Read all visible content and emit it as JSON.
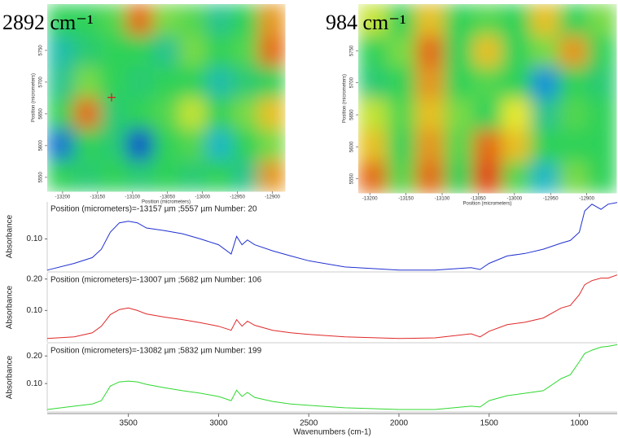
{
  "chart_data": [
    {
      "type": "heatmap",
      "title": "2892 cm⁻¹",
      "xlabel": "Position (micrometers)",
      "ylabel": "Position (micrometers)",
      "xlim": [
        -13222,
        -12882
      ],
      "ylim": [
        5528,
        5823
      ],
      "xticks": [
        -13200,
        -13150,
        -13100,
        -13050,
        -13000,
        -12950,
        -12900
      ],
      "yticks": [
        5550,
        5600,
        5650,
        5700,
        5750
      ],
      "zlim": [
        0,
        1
      ],
      "colors": [
        "#0a1fb4",
        "#1ab0e0",
        "#2ed158",
        "#e8e82a",
        "#e21a0c"
      ],
      "marker": {
        "x": -13130,
        "y": 5676,
        "color": "#d42020"
      },
      "z": [
        [
          0.5,
          0.5,
          0.55,
          0.9,
          0.6,
          0.55,
          0.4,
          0.5,
          0.85
        ],
        [
          0.35,
          0.45,
          0.5,
          0.5,
          0.4,
          0.6,
          0.5,
          0.55,
          0.9
        ],
        [
          0.4,
          0.6,
          0.5,
          0.45,
          0.5,
          0.5,
          0.35,
          0.45,
          0.5
        ],
        [
          0.5,
          0.9,
          0.45,
          0.5,
          0.55,
          0.7,
          0.5,
          0.6,
          0.8
        ],
        [
          0.15,
          0.5,
          0.45,
          0.1,
          0.5,
          0.55,
          0.3,
          0.5,
          0.6
        ],
        [
          0.5,
          0.45,
          0.5,
          0.45,
          0.5,
          0.45,
          0.5,
          0.4,
          0.85
        ]
      ]
    },
    {
      "type": "heatmap",
      "title": "984 cm⁻¹",
      "xlabel": "Position (micrometers)",
      "ylabel": "Position (micrometers)",
      "xlim": [
        -13216,
        -12859
      ],
      "ylim": [
        5528,
        5823
      ],
      "xticks": [
        -13200,
        -13150,
        -13100,
        -13050,
        -13000,
        -12950,
        -12900
      ],
      "yticks": [
        5550,
        5600,
        5650,
        5700,
        5750
      ],
      "zlim": [
        0,
        1
      ],
      "colors": [
        "#0a1fb4",
        "#1ab0e0",
        "#2ed158",
        "#e8e82a",
        "#e21a0c"
      ],
      "z": [
        [
          0.7,
          0.5,
          0.8,
          0.5,
          0.55,
          0.5,
          0.8,
          0.5,
          0.6
        ],
        [
          0.5,
          0.6,
          0.9,
          0.5,
          0.8,
          0.5,
          0.6,
          0.85,
          0.5
        ],
        [
          0.45,
          0.5,
          0.85,
          0.5,
          0.55,
          0.5,
          0.2,
          0.5,
          0.45
        ],
        [
          0.7,
          0.55,
          0.8,
          0.6,
          0.5,
          0.75,
          0.4,
          0.55,
          0.5
        ],
        [
          0.8,
          0.5,
          0.85,
          0.55,
          0.9,
          0.8,
          0.5,
          0.5,
          0.5
        ],
        [
          0.9,
          0.55,
          0.9,
          0.5,
          0.95,
          0.55,
          0.3,
          0.6,
          0.5
        ]
      ]
    },
    {
      "type": "line",
      "subtitle": "Position (micrometers)=-13157 µm ;5557 µm  Number: 20",
      "ylabel": "Absorbance",
      "xlim": [
        3950,
        790
      ],
      "ylim": [
        0,
        0.215
      ],
      "yticks": [
        {
          "value": 0.1,
          "label": "0.10"
        }
      ],
      "x": [
        3950,
        3800,
        3700,
        3650,
        3600,
        3550,
        3500,
        3450,
        3400,
        3300,
        3200,
        3100,
        3000,
        2930,
        2900,
        2870,
        2840,
        2800,
        2700,
        2600,
        2500,
        2300,
        2000,
        1800,
        1600,
        1550,
        1500,
        1400,
        1300,
        1200,
        1100,
        1050,
        1000,
        970,
        930,
        880,
        840,
        790
      ],
      "series": [
        {
          "color": "#2030d0",
          "values": [
            0.003,
            0.024,
            0.042,
            0.068,
            0.121,
            0.15,
            0.155,
            0.15,
            0.134,
            0.126,
            0.116,
            0.1,
            0.082,
            0.053,
            0.108,
            0.082,
            0.097,
            0.082,
            0.063,
            0.047,
            0.032,
            0.013,
            0.003,
            0.003,
            0.011,
            0.005,
            0.024,
            0.047,
            0.055,
            0.068,
            0.087,
            0.095,
            0.121,
            0.187,
            0.208,
            0.192,
            0.208,
            0.213
          ]
        }
      ]
    },
    {
      "type": "line",
      "subtitle": "Position (micrometers)=-13007 µm ;5682 µm  Number: 106",
      "ylabel": "Absorbance",
      "xlim": [
        3950,
        790
      ],
      "ylim": [
        0,
        0.22
      ],
      "yticks": [
        {
          "value": 0.2,
          "label": "0.20"
        },
        {
          "value": 0.1,
          "label": "0.10"
        }
      ],
      "x": [
        3950,
        3800,
        3700,
        3650,
        3600,
        3550,
        3500,
        3450,
        3400,
        3300,
        3200,
        3100,
        3000,
        2930,
        2900,
        2870,
        2840,
        2800,
        2700,
        2600,
        2500,
        2300,
        2000,
        1800,
        1600,
        1550,
        1500,
        1400,
        1300,
        1200,
        1100,
        1050,
        1000,
        970,
        930,
        880,
        840,
        790
      ],
      "series": [
        {
          "color": "#e02828",
          "values": [
            0.011,
            0.016,
            0.029,
            0.05,
            0.087,
            0.103,
            0.108,
            0.1,
            0.089,
            0.079,
            0.071,
            0.061,
            0.05,
            0.037,
            0.071,
            0.05,
            0.066,
            0.053,
            0.037,
            0.029,
            0.024,
            0.016,
            0.011,
            0.013,
            0.026,
            0.016,
            0.034,
            0.055,
            0.063,
            0.076,
            0.108,
            0.116,
            0.15,
            0.182,
            0.195,
            0.203,
            0.203,
            0.213
          ]
        }
      ]
    },
    {
      "type": "line",
      "subtitle": "Position (micrometers)=-13082 µm ;5832 µm  Number: 199",
      "ylabel": "Absorbance",
      "xlabel": "Wavenumbers (cm-1)",
      "xlim": [
        3950,
        790
      ],
      "ylim": [
        0,
        0.245
      ],
      "yticks": [
        {
          "value": 0.2,
          "label": "0.20"
        },
        {
          "value": 0.1,
          "label": "0.10"
        }
      ],
      "xticks": [
        3500,
        3000,
        2500,
        2000,
        1500,
        1000
      ],
      "x": [
        3950,
        3800,
        3700,
        3650,
        3600,
        3550,
        3500,
        3450,
        3400,
        3300,
        3200,
        3100,
        3000,
        2930,
        2900,
        2870,
        2840,
        2800,
        2700,
        2600,
        2500,
        2300,
        2000,
        1800,
        1600,
        1550,
        1500,
        1400,
        1300,
        1200,
        1100,
        1050,
        1000,
        970,
        930,
        880,
        840,
        790
      ],
      "series": [
        {
          "color": "#30d830",
          "values": [
            0.006,
            0.018,
            0.026,
            0.038,
            0.091,
            0.106,
            0.109,
            0.106,
            0.097,
            0.085,
            0.074,
            0.065,
            0.053,
            0.038,
            0.076,
            0.053,
            0.068,
            0.05,
            0.035,
            0.026,
            0.021,
            0.012,
            0.006,
            0.006,
            0.018,
            0.015,
            0.038,
            0.056,
            0.065,
            0.074,
            0.118,
            0.132,
            0.179,
            0.209,
            0.221,
            0.232,
            0.235,
            0.241
          ]
        }
      ]
    }
  ]
}
